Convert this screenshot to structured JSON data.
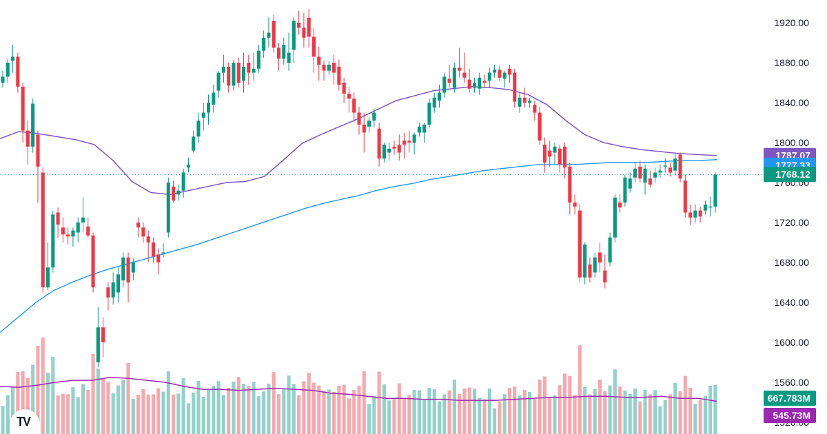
{
  "chart_data": {
    "type": "candlestick",
    "y_axis": {
      "ticks": [
        "1920.00",
        "1880.00",
        "1840.00",
        "1800.00",
        "1760.00",
        "1720.00",
        "1680.00",
        "1640.00",
        "1600.00",
        "1560.00",
        "1520.00"
      ],
      "range": [
        1508,
        1935
      ],
      "position": "right"
    },
    "colors": {
      "up": "#089981",
      "down": "#f23645",
      "up_volume": "#92d2c9",
      "down_volume": "#f7a8ae",
      "ma_long": "#2196f3",
      "ma_short": "#7e57c2",
      "volume_ma": "#9c27b0",
      "grid_dotted": "#089981"
    },
    "candles": [
      [
        1860,
        1872,
        1855,
        1866
      ],
      [
        1866,
        1884,
        1860,
        1880
      ],
      [
        1882,
        1898,
        1870,
        1886
      ],
      [
        1886,
        1890,
        1850,
        1856
      ],
      [
        1856,
        1860,
        1800,
        1812
      ],
      [
        1812,
        1822,
        1778,
        1796
      ],
      [
        1796,
        1844,
        1790,
        1839
      ],
      [
        1808,
        1812,
        1740,
        1776
      ],
      [
        1770,
        1775,
        1650,
        1655
      ],
      [
        1655,
        1700,
        1652,
        1675
      ],
      [
        1675,
        1732,
        1670,
        1728
      ],
      [
        1730,
        1735,
        1705,
        1718
      ],
      [
        1715,
        1725,
        1700,
        1708
      ],
      [
        1708,
        1715,
        1698,
        1706
      ],
      [
        1706,
        1715,
        1696,
        1712
      ],
      [
        1710,
        1725,
        1700,
        1720
      ],
      [
        1720,
        1745,
        1710,
        1725
      ],
      [
        1716,
        1725,
        1705,
        1707
      ],
      [
        1707,
        1710,
        1650,
        1655
      ],
      [
        1580,
        1635,
        1575,
        1615
      ],
      [
        1615,
        1625,
        1585,
        1600
      ],
      [
        1655,
        1660,
        1632,
        1645
      ],
      [
        1645,
        1670,
        1638,
        1660
      ],
      [
        1650,
        1675,
        1640,
        1668
      ],
      [
        1662,
        1690,
        1655,
        1685
      ],
      [
        1685,
        1690,
        1640,
        1660
      ],
      [
        1670,
        1684,
        1662,
        1680
      ],
      [
        1720,
        1725,
        1705,
        1715
      ],
      [
        1715,
        1720,
        1700,
        1706
      ],
      [
        1706,
        1712,
        1680,
        1700
      ],
      [
        1700,
        1705,
        1680,
        1686
      ],
      [
        1688,
        1694,
        1668,
        1680
      ],
      [
        1690,
        1699,
        1685,
        1690
      ],
      [
        1710,
        1765,
        1705,
        1760
      ],
      [
        1756,
        1762,
        1740,
        1742
      ],
      [
        1748,
        1758,
        1742,
        1752
      ],
      [
        1752,
        1774,
        1745,
        1770
      ],
      [
        1775,
        1785,
        1770,
        1778
      ],
      [
        1792,
        1812,
        1790,
        1806
      ],
      [
        1806,
        1830,
        1800,
        1822
      ],
      [
        1825,
        1840,
        1812,
        1830
      ],
      [
        1830,
        1848,
        1818,
        1840
      ],
      [
        1838,
        1858,
        1830,
        1850
      ],
      [
        1852,
        1872,
        1845,
        1870
      ],
      [
        1870,
        1888,
        1860,
        1876
      ],
      [
        1876,
        1880,
        1850,
        1857
      ],
      [
        1857,
        1883,
        1852,
        1880
      ],
      [
        1880,
        1885,
        1855,
        1860
      ],
      [
        1862,
        1890,
        1850,
        1876
      ],
      [
        1880,
        1888,
        1858,
        1870
      ],
      [
        1870,
        1890,
        1862,
        1874
      ],
      [
        1874,
        1898,
        1870,
        1892
      ],
      [
        1892,
        1912,
        1885,
        1905
      ],
      [
        1905,
        1925,
        1895,
        1910
      ],
      [
        1922,
        1928,
        1890,
        1895
      ],
      [
        1895,
        1900,
        1872,
        1884
      ],
      [
        1884,
        1905,
        1878,
        1898
      ],
      [
        1880,
        1910,
        1872,
        1890
      ],
      [
        1893,
        1926,
        1880,
        1922
      ],
      [
        1920,
        1932,
        1908,
        1915
      ],
      [
        1915,
        1930,
        1895,
        1905
      ],
      [
        1925,
        1934,
        1895,
        1906
      ],
      [
        1906,
        1915,
        1870,
        1886
      ],
      [
        1886,
        1896,
        1862,
        1878
      ],
      [
        1878,
        1882,
        1862,
        1872
      ],
      [
        1872,
        1882,
        1868,
        1878
      ],
      [
        1880,
        1888,
        1858,
        1870
      ],
      [
        1876,
        1883,
        1852,
        1858
      ],
      [
        1860,
        1865,
        1840,
        1849
      ],
      [
        1849,
        1856,
        1830,
        1844
      ],
      [
        1844,
        1850,
        1820,
        1830
      ],
      [
        1830,
        1836,
        1808,
        1818
      ],
      [
        1818,
        1830,
        1790,
        1810
      ],
      [
        1816,
        1826,
        1810,
        1822
      ],
      [
        1822,
        1834,
        1815,
        1830
      ],
      [
        1814,
        1820,
        1776,
        1784
      ],
      [
        1784,
        1800,
        1780,
        1798
      ],
      [
        1790,
        1800,
        1782,
        1794
      ],
      [
        1796,
        1802,
        1788,
        1794
      ],
      [
        1798,
        1808,
        1782,
        1790
      ],
      [
        1802,
        1810,
        1784,
        1798
      ],
      [
        1802,
        1812,
        1790,
        1800
      ],
      [
        1800,
        1810,
        1788,
        1808
      ],
      [
        1810,
        1820,
        1806,
        1816
      ],
      [
        1810,
        1820,
        1800,
        1818
      ],
      [
        1818,
        1844,
        1815,
        1840
      ],
      [
        1835,
        1850,
        1830,
        1845
      ],
      [
        1842,
        1858,
        1835,
        1850
      ],
      [
        1850,
        1870,
        1845,
        1866
      ],
      [
        1864,
        1878,
        1855,
        1860
      ],
      [
        1855,
        1880,
        1850,
        1875
      ],
      [
        1875,
        1895,
        1865,
        1872
      ],
      [
        1870,
        1890,
        1860,
        1865
      ],
      [
        1863,
        1874,
        1850,
        1854
      ],
      [
        1855,
        1865,
        1850,
        1860
      ],
      [
        1854,
        1870,
        1848,
        1865
      ],
      [
        1862,
        1868,
        1855,
        1860
      ],
      [
        1862,
        1875,
        1855,
        1870
      ],
      [
        1870,
        1878,
        1865,
        1873
      ],
      [
        1873,
        1877,
        1862,
        1865
      ],
      [
        1864,
        1872,
        1855,
        1870
      ],
      [
        1874,
        1878,
        1860,
        1868
      ],
      [
        1870,
        1874,
        1835,
        1841
      ],
      [
        1836,
        1850,
        1830,
        1845
      ],
      [
        1845,
        1855,
        1835,
        1840
      ],
      [
        1840,
        1845,
        1835,
        1842
      ],
      [
        1838,
        1842,
        1822,
        1830
      ],
      [
        1830,
        1836,
        1798,
        1802
      ],
      [
        1798,
        1805,
        1770,
        1780
      ],
      [
        1792,
        1802,
        1776,
        1786
      ],
      [
        1790,
        1800,
        1778,
        1796
      ],
      [
        1794,
        1798,
        1770,
        1778
      ],
      [
        1796,
        1800,
        1764,
        1775
      ],
      [
        1776,
        1780,
        1728,
        1740
      ],
      [
        1740,
        1748,
        1728,
        1736
      ],
      [
        1732,
        1738,
        1660,
        1665
      ],
      [
        1665,
        1700,
        1658,
        1698
      ],
      [
        1678,
        1685,
        1660,
        1665
      ],
      [
        1670,
        1690,
        1665,
        1685
      ],
      [
        1690,
        1700,
        1670,
        1680
      ],
      [
        1672,
        1688,
        1654,
        1660
      ],
      [
        1680,
        1710,
        1676,
        1705
      ],
      [
        1705,
        1748,
        1700,
        1745
      ],
      [
        1740,
        1748,
        1730,
        1735
      ],
      [
        1740,
        1768,
        1736,
        1765
      ],
      [
        1754,
        1770,
        1750,
        1764
      ],
      [
        1765,
        1780,
        1760,
        1774
      ],
      [
        1776,
        1782,
        1760,
        1764
      ],
      [
        1760,
        1778,
        1748,
        1774
      ],
      [
        1764,
        1772,
        1755,
        1758
      ],
      [
        1765,
        1775,
        1760,
        1770
      ],
      [
        1770,
        1778,
        1765,
        1772
      ],
      [
        1776,
        1784,
        1770,
        1777
      ],
      [
        1775,
        1780,
        1766,
        1770
      ],
      [
        1772,
        1790,
        1768,
        1784
      ],
      [
        1788,
        1790,
        1760,
        1764
      ],
      [
        1762,
        1768,
        1725,
        1730
      ],
      [
        1730,
        1738,
        1718,
        1725
      ],
      [
        1725,
        1738,
        1720,
        1732
      ],
      [
        1732,
        1736,
        1720,
        1726
      ],
      [
        1732,
        1742,
        1728,
        1738
      ],
      [
        1736,
        1746,
        1726,
        1736
      ],
      [
        1736,
        1770,
        1730,
        1768
      ]
    ],
    "ma_long_values": [
      1610,
      1625,
      1640,
      1652,
      1660,
      1667,
      1673,
      1678,
      1683,
      1688,
      1693,
      1698,
      1704,
      1710,
      1716,
      1722,
      1728,
      1734,
      1739,
      1743,
      1747,
      1752,
      1756,
      1759,
      1763,
      1766,
      1769,
      1772,
      1774,
      1776,
      1778,
      1778,
      1778,
      1779,
      1780,
      1780,
      1780,
      1781,
      1782,
      1782,
      1783
    ],
    "ma_short_values": [
      1804,
      1811,
      1809,
      1806,
      1803,
      1798,
      1782,
      1761,
      1750,
      1748,
      1752,
      1756,
      1760,
      1761,
      1766,
      1782,
      1799,
      1808,
      1816,
      1824,
      1833,
      1842,
      1847,
      1852,
      1854,
      1856,
      1855,
      1853,
      1848,
      1838,
      1822,
      1808,
      1800,
      1796,
      1793,
      1791,
      1789,
      1788,
      1787
    ],
    "volume_ma_values": [
      1556,
      1555,
      1557,
      1560,
      1562,
      1562,
      1565,
      1564,
      1562,
      1560,
      1556,
      1553,
      1553,
      1552,
      1553,
      1554,
      1553,
      1552,
      1549,
      1548,
      1546,
      1544,
      1544,
      1543,
      1543,
      1542,
      1542,
      1542,
      1543,
      1544,
      1545,
      1545,
      1546,
      1546,
      1545,
      1545,
      1546,
      1544,
      1544,
      1541
    ],
    "last_price": 1768.12,
    "badges": [
      {
        "label": "1787.07",
        "color": "#7e57c2"
      },
      {
        "label": "1777.33",
        "color": "#2196f3"
      },
      {
        "label": "1768.12",
        "color": "#089981"
      },
      {
        "label": "667.783M",
        "color": "#089981"
      },
      {
        "label": "545.73M",
        "color": "#9c27b0"
      }
    ]
  },
  "logo": {
    "text": "TV",
    "name": "TradingView"
  }
}
